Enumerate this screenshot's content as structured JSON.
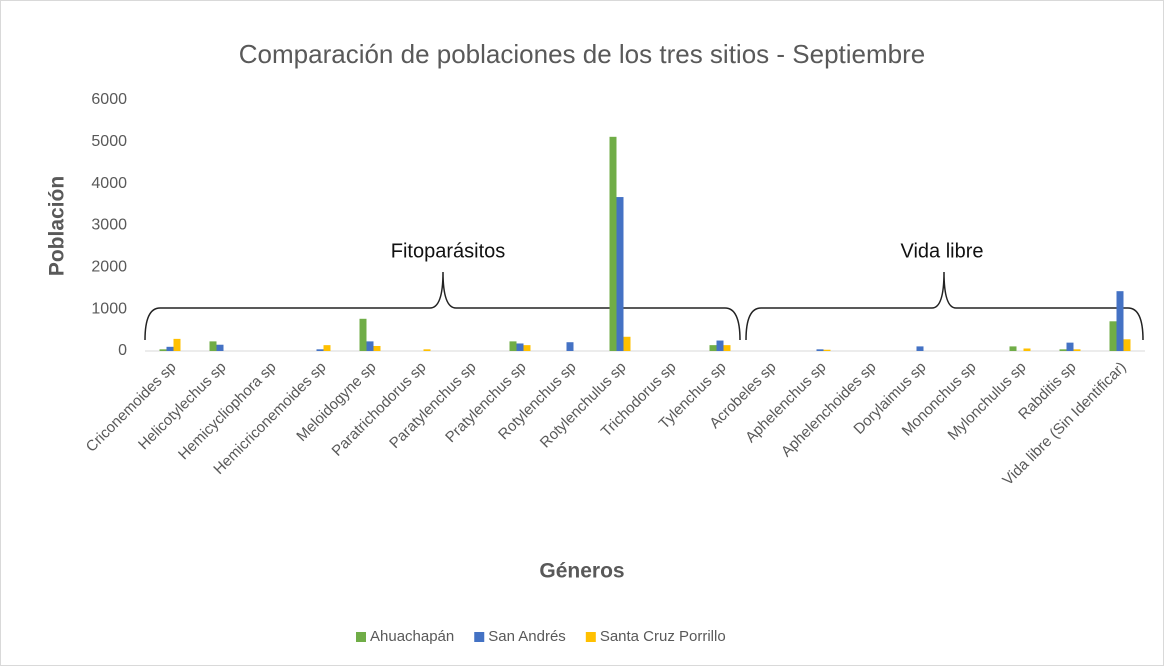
{
  "chart_data": {
    "type": "bar",
    "title": "Comparación de poblaciones de los tres sitios - Septiembre",
    "x_label": "Géneros",
    "y_label": "Población",
    "categories": [
      "Criconemoides sp",
      "Helicotylechus sp",
      "Hemicycliophora sp",
      "Hemicriconemoides sp",
      "Meloidogyne sp",
      "Paratrichodorus sp",
      "Paratylenchus sp",
      "Pratylenchus sp",
      "Rotylenchus sp",
      "Rotylenchulus sp",
      "Trichodorus sp",
      "Tylenchus sp",
      "Acrobeles sp",
      "Aphelenchus sp",
      "Aphelenchoides sp",
      "Dorylaimus sp",
      "Mononchus sp",
      "Mylonchulus sp",
      "Rabditis sp",
      "Vida libre (Sin Identificar)"
    ],
    "series": [
      {
        "name": "Ahuachapán",
        "color": "#70ad47",
        "values": [
          40,
          230,
          0,
          0,
          770,
          0,
          0,
          230,
          0,
          5120,
          0,
          140,
          0,
          0,
          0,
          0,
          0,
          110,
          40,
          710
        ]
      },
      {
        "name": "San Andrés",
        "color": "#4472c4",
        "values": [
          100,
          150,
          0,
          40,
          230,
          0,
          0,
          180,
          210,
          3680,
          0,
          250,
          0,
          40,
          0,
          110,
          0,
          0,
          200,
          1430
        ]
      },
      {
        "name": "Santa Cruz Porrillo",
        "color": "#ffc000",
        "values": [
          290,
          0,
          0,
          140,
          120,
          40,
          0,
          140,
          0,
          340,
          0,
          140,
          0,
          30,
          0,
          0,
          0,
          60,
          40,
          280
        ]
      }
    ],
    "annotations": [
      "Fitoparásitos",
      "Vida libre"
    ],
    "ylim": [
      0,
      6000
    ],
    "yticks": [
      0,
      1000,
      2000,
      3000,
      4000,
      5000,
      6000
    ],
    "grid": false,
    "legend": "bottom"
  }
}
